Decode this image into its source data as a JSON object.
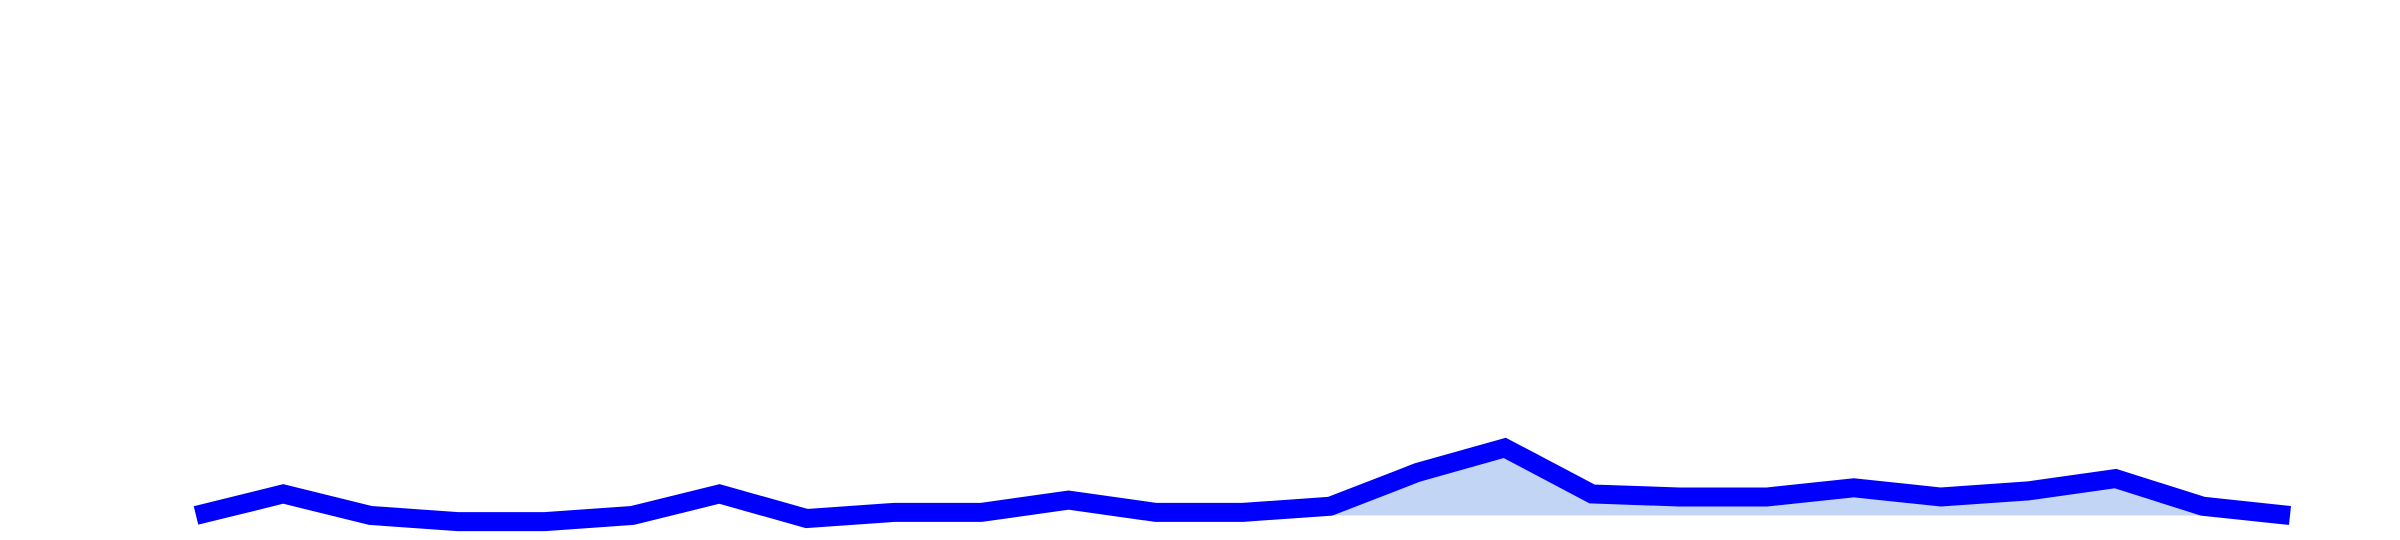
{
  "chart_data": {
    "type": "line",
    "series": [
      {
        "color": "#c2d5f5",
        "fill": true,
        "baseline": 4,
        "values": [
          null,
          null,
          null,
          null,
          null,
          null,
          null,
          null,
          null,
          null,
          null,
          null,
          null,
          10,
          32,
          48,
          18,
          16,
          16,
          22,
          16,
          20,
          28,
          10,
          4
        ]
      },
      {
        "color": "#0000ff",
        "values": [
          4,
          18,
          4,
          0,
          0,
          4,
          18,
          2,
          6,
          6,
          14,
          6,
          6,
          10,
          32,
          48,
          18,
          16,
          16,
          22,
          16,
          20,
          28,
          10,
          4
        ]
      }
    ],
    "ylim": [
      0,
      100
    ]
  }
}
